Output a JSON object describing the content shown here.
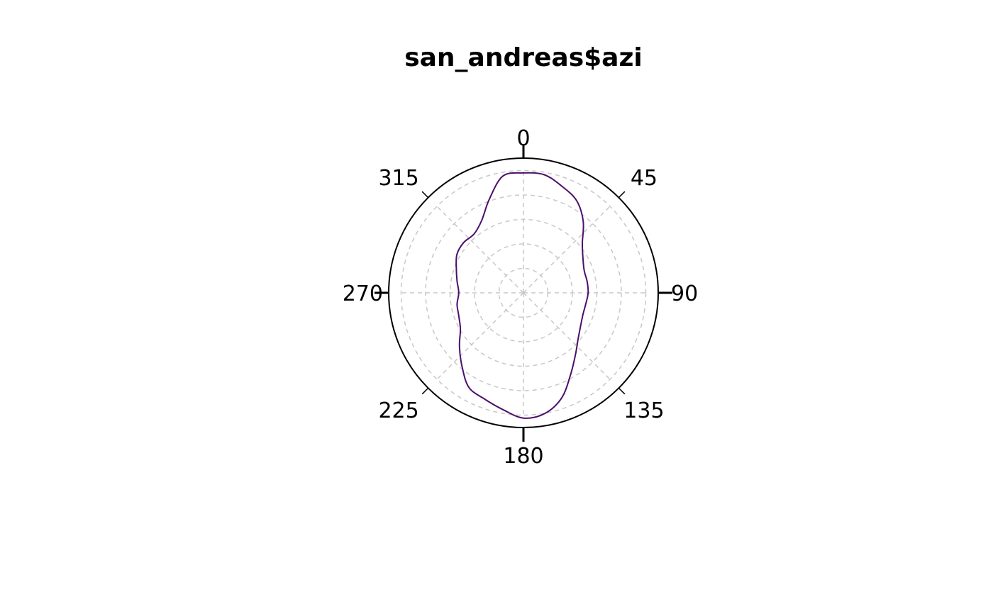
{
  "chart_data": {
    "type": "line",
    "subtype": "polar-density",
    "title": "san_andreas$azi",
    "angle_units": "degrees",
    "orientation": "clockwise from north",
    "tick_labels": [
      "0",
      "45",
      "90",
      "135",
      "180",
      "225",
      "270",
      "315"
    ],
    "grid": true,
    "grid_rings": 5,
    "colors": {
      "series": "#4b0f6b",
      "grid": "#c8c8c8",
      "outline": "#000000"
    },
    "series": [
      {
        "theta": [
          0,
          10,
          20,
          30,
          40,
          50,
          60,
          70,
          80,
          90,
          100,
          110,
          120,
          130,
          140,
          150,
          160,
          170,
          180,
          190,
          200,
          210,
          220,
          230,
          240,
          250,
          260,
          270,
          280,
          290,
          300,
          310,
          320,
          330,
          340,
          350
        ],
        "r": [
          0.89,
          0.89,
          0.84,
          0.79,
          0.69,
          0.57,
          0.51,
          0.48,
          0.48,
          0.48,
          0.47,
          0.47,
          0.49,
          0.53,
          0.6,
          0.7,
          0.83,
          0.91,
          0.93,
          0.88,
          0.84,
          0.81,
          0.71,
          0.62,
          0.54,
          0.51,
          0.5,
          0.48,
          0.5,
          0.53,
          0.57,
          0.58,
          0.57,
          0.62,
          0.74,
          0.88
        ]
      }
    ]
  }
}
